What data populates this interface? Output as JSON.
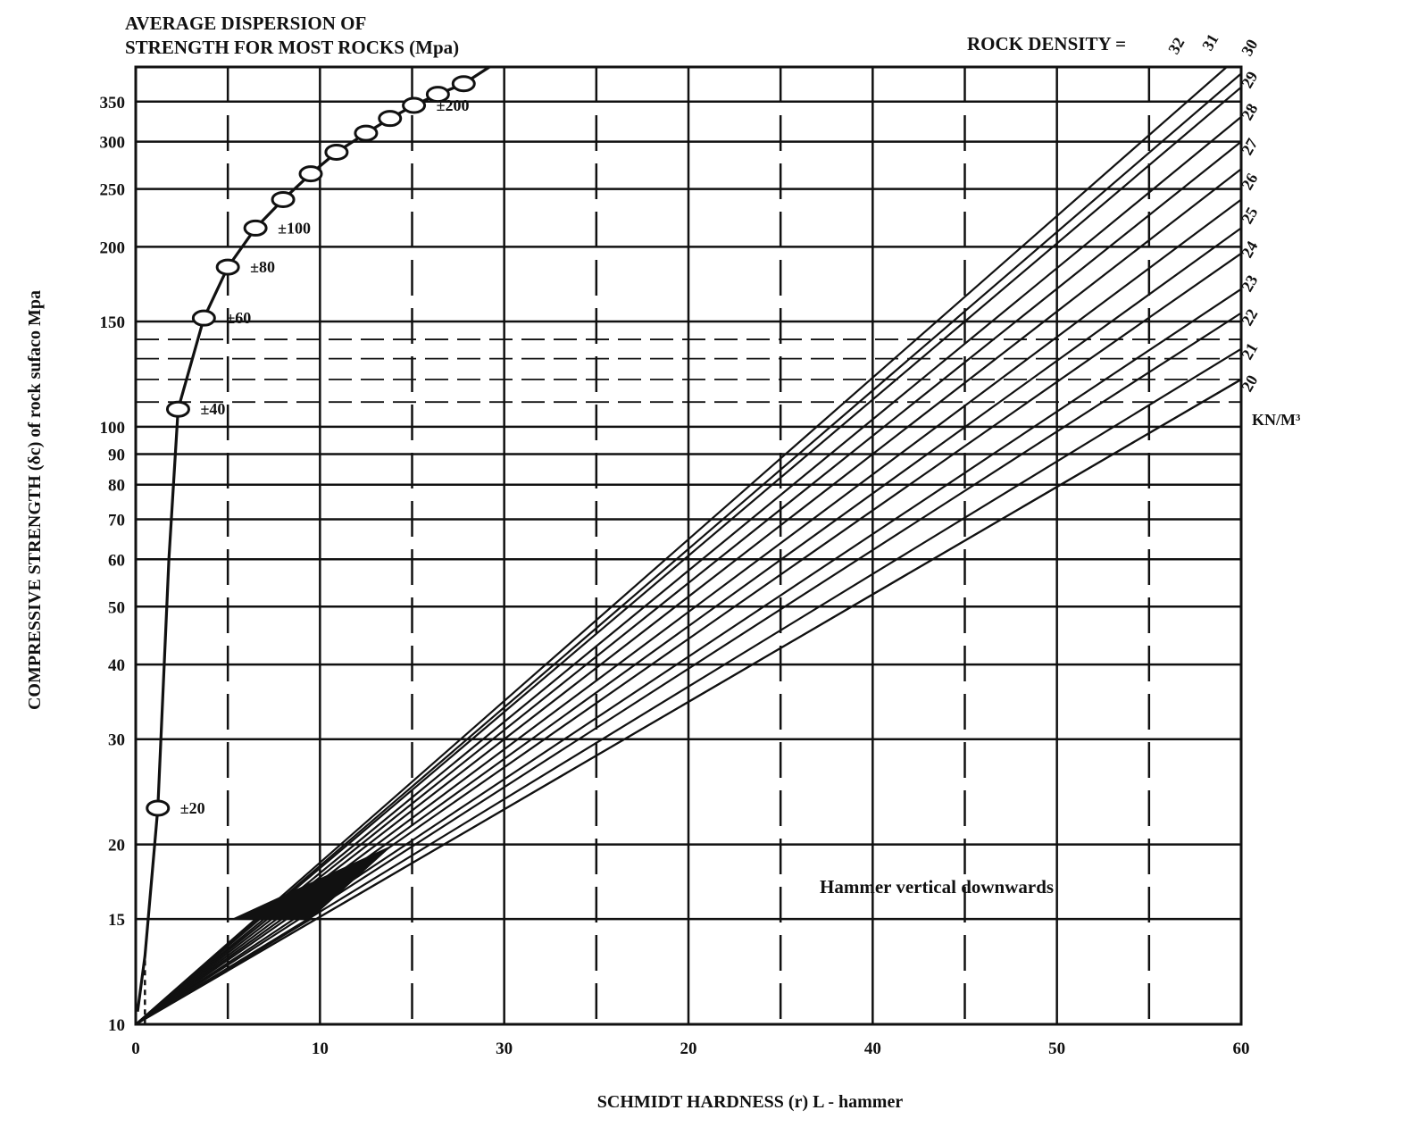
{
  "chart_data": {
    "type": "line",
    "title": [
      "AVERAGE DISPERSION OF",
      "STRENGTH FOR MOST ROCKS (Mpa)"
    ],
    "xlabel": "SCHMIDT HARDNESS (r)   L - hammer",
    "ylabel": "COMPRESSIVE STRENGTH (δc) of rock sufaco Mpa",
    "xlim": [
      0,
      60
    ],
    "ylim": [
      10,
      400
    ],
    "y_scale": "log",
    "x_ticks": [
      "0",
      "10",
      "30",
      "20",
      "40",
      "50",
      "60"
    ],
    "y_ticks": [
      "10",
      "15",
      "20",
      "30",
      "40",
      "50",
      "60",
      "70",
      "80",
      "90",
      "100",
      "150",
      "200",
      "250",
      "300",
      "350"
    ],
    "density_header": "ROCK DENSITY =",
    "density_values": [
      "32",
      "31",
      "30",
      "29",
      "28",
      "27",
      "26",
      "25",
      "24",
      "23",
      "22",
      "21",
      "20"
    ],
    "density_unit": "KN/M³",
    "annotation": "Hammer vertical downwards",
    "dispersion": {
      "marker_values": [
        23,
        107,
        152,
        185,
        215,
        240,
        265,
        288,
        310,
        328,
        345,
        360,
        375
      ],
      "labels": [
        "±20",
        "±40",
        "±60",
        "±80",
        "±100",
        "±200"
      ]
    },
    "series": [
      {
        "name": "32",
        "x": [
          0,
          60
        ],
        "y": [
          10,
          420
        ]
      },
      {
        "name": "31",
        "x": [
          0,
          60
        ],
        "y": [
          10,
          390
        ]
      },
      {
        "name": "30",
        "x": [
          0,
          60
        ],
        "y": [
          10,
          370
        ]
      },
      {
        "name": "29",
        "x": [
          0,
          60
        ],
        "y": [
          10,
          330
        ]
      },
      {
        "name": "28",
        "x": [
          0,
          60
        ],
        "y": [
          10,
          300
        ]
      },
      {
        "name": "27",
        "x": [
          0,
          60
        ],
        "y": [
          10,
          270
        ]
      },
      {
        "name": "26",
        "x": [
          0,
          60
        ],
        "y": [
          10,
          240
        ]
      },
      {
        "name": "25",
        "x": [
          0,
          60
        ],
        "y": [
          10,
          215
        ]
      },
      {
        "name": "24",
        "x": [
          0,
          60
        ],
        "y": [
          10,
          195
        ]
      },
      {
        "name": "23",
        "x": [
          0,
          60
        ],
        "y": [
          10,
          170
        ]
      },
      {
        "name": "22",
        "x": [
          0,
          60
        ],
        "y": [
          10,
          155
        ]
      },
      {
        "name": "21",
        "x": [
          0,
          60
        ],
        "y": [
          10,
          135
        ]
      },
      {
        "name": "20",
        "x": [
          0,
          60
        ],
        "y": [
          10,
          120
        ]
      }
    ],
    "grid": true
  }
}
